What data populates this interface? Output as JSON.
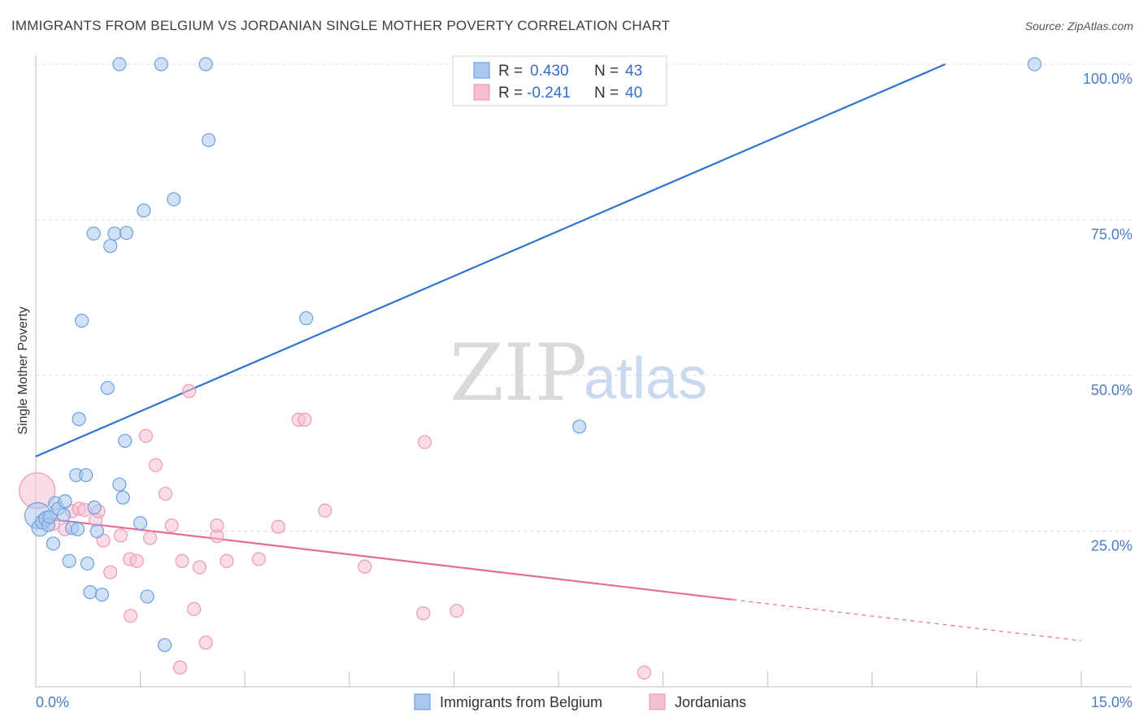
{
  "header": {
    "title": "IMMIGRANTS FROM BELGIUM VS JORDANIAN SINGLE MOTHER POVERTY CORRELATION CHART",
    "source": "Source: ZipAtlas.com"
  },
  "watermark": {
    "zip": "ZIP",
    "atlas": "atlas"
  },
  "colors": {
    "blue_fill": "#aac8ef",
    "blue_stroke": "#6d9fe0",
    "blue_line": "#2f74d0",
    "pink_fill": "#f6bfd0",
    "pink_stroke": "#ec9ab4",
    "pink_line": "#e36c98",
    "grid": "#dcdcdc",
    "tick_text": "#4a7bc8"
  },
  "legend_box": {
    "rows": [
      {
        "r_label": "R =",
        "r_value": "0.430",
        "n_label": "N =",
        "n_value": "43"
      },
      {
        "r_label": "R =",
        "r_value": "-0.241",
        "n_label": "N =",
        "n_value": "40"
      }
    ]
  },
  "bottom_legend": [
    "Immigrants from Belgium",
    "Jordanians"
  ],
  "chart_data": {
    "type": "scatter",
    "title": "IMMIGRANTS FROM BELGIUM VS JORDANIAN SINGLE MOTHER POVERTY CORRELATION CHART",
    "xlabel": "",
    "ylabel": "Single Mother Poverty",
    "xlim": [
      0,
      15
    ],
    "ylim": [
      0,
      100
    ],
    "x_tick_labels": [
      "0.0%",
      "15.0%"
    ],
    "y_ticks": [
      25,
      50,
      75,
      100
    ],
    "y_tick_labels": [
      "25.0%",
      "50.0%",
      "75.0%",
      "100.0%"
    ],
    "grid": true,
    "legend_position": "top-center",
    "series": [
      {
        "name": "Immigrants from Belgium",
        "color": "#6d9fe0",
        "points": [
          [
            0.03,
            27.5,
            16
          ],
          [
            0.06,
            25.5,
            10
          ],
          [
            0.1,
            26.5,
            9
          ],
          [
            0.15,
            27.0,
            9
          ],
          [
            0.18,
            26.0,
            8
          ],
          [
            0.2,
            27.3,
            8
          ],
          [
            0.25,
            23.0,
            8
          ],
          [
            0.28,
            29.5,
            8
          ],
          [
            0.32,
            28.6,
            8
          ],
          [
            0.4,
            27.6,
            8
          ],
          [
            0.42,
            29.8,
            8
          ],
          [
            0.48,
            20.2,
            8
          ],
          [
            0.52,
            25.5,
            8
          ],
          [
            0.6,
            25.3,
            8
          ],
          [
            0.58,
            34.0,
            8
          ],
          [
            0.62,
            43.0,
            8
          ],
          [
            0.66,
            58.8,
            8
          ],
          [
            0.72,
            34.0,
            8
          ],
          [
            0.74,
            19.8,
            8
          ],
          [
            0.78,
            15.2,
            8
          ],
          [
            0.84,
            28.8,
            8
          ],
          [
            0.88,
            25.0,
            8
          ],
          [
            0.95,
            14.8,
            8
          ],
          [
            1.03,
            48.0,
            8
          ],
          [
            0.83,
            72.8,
            8
          ],
          [
            1.07,
            70.8,
            8
          ],
          [
            1.13,
            72.8,
            8
          ],
          [
            1.3,
            72.9,
            8
          ],
          [
            1.2,
            100.0,
            8
          ],
          [
            1.2,
            32.5,
            8
          ],
          [
            1.25,
            30.4,
            8
          ],
          [
            1.28,
            39.5,
            8
          ],
          [
            1.5,
            26.3,
            8
          ],
          [
            1.55,
            76.5,
            8
          ],
          [
            1.6,
            14.5,
            8
          ],
          [
            1.8,
            100.0,
            8
          ],
          [
            1.85,
            6.7,
            8
          ],
          [
            1.98,
            78.3,
            8
          ],
          [
            2.44,
            100.0,
            8
          ],
          [
            2.48,
            87.8,
            8
          ],
          [
            3.88,
            59.2,
            8
          ],
          [
            7.8,
            41.8,
            8
          ],
          [
            14.33,
            100.0,
            8
          ]
        ],
        "trend": {
          "x0": 0.0,
          "y0": 37.0,
          "x1": 13.05,
          "y1": 100.0,
          "dashed_to": null
        }
      },
      {
        "name": "Jordanians",
        "color": "#ec9ab4",
        "points": [
          [
            0.02,
            31.5,
            22
          ],
          [
            0.25,
            26.2,
            8
          ],
          [
            0.42,
            25.3,
            8
          ],
          [
            0.52,
            28.2,
            8
          ],
          [
            0.62,
            28.6,
            8
          ],
          [
            0.7,
            28.4,
            8
          ],
          [
            0.86,
            26.8,
            8
          ],
          [
            0.9,
            28.2,
            8
          ],
          [
            0.97,
            23.5,
            8
          ],
          [
            1.07,
            18.4,
            8
          ],
          [
            1.22,
            24.3,
            8
          ],
          [
            1.35,
            20.5,
            8
          ],
          [
            1.36,
            11.4,
            8
          ],
          [
            1.45,
            20.2,
            8
          ],
          [
            1.58,
            40.3,
            8
          ],
          [
            1.64,
            23.9,
            8
          ],
          [
            1.72,
            35.6,
            8
          ],
          [
            1.86,
            31.0,
            8
          ],
          [
            1.95,
            25.9,
            8
          ],
          [
            2.07,
            3.1,
            8
          ],
          [
            2.1,
            20.2,
            8
          ],
          [
            2.2,
            47.5,
            8
          ],
          [
            2.27,
            12.5,
            8
          ],
          [
            2.35,
            19.2,
            8
          ],
          [
            2.44,
            7.1,
            8
          ],
          [
            2.6,
            24.2,
            8
          ],
          [
            2.6,
            25.9,
            8
          ],
          [
            2.74,
            20.2,
            8
          ],
          [
            3.2,
            20.5,
            8
          ],
          [
            3.48,
            25.7,
            8
          ],
          [
            3.77,
            42.9,
            8
          ],
          [
            3.86,
            42.9,
            8
          ],
          [
            4.15,
            28.3,
            8
          ],
          [
            4.72,
            19.3,
            8
          ],
          [
            5.56,
            11.8,
            8
          ],
          [
            5.58,
            39.3,
            8
          ],
          [
            6.04,
            12.2,
            8
          ],
          [
            8.73,
            2.3,
            8
          ],
          [
            8.75,
            5.0,
            0
          ],
          [
            0.55,
            27.0,
            0
          ]
        ],
        "trend": {
          "x0": 0.0,
          "y0": 27.2,
          "x1": 10.0,
          "y1": 14.0,
          "dashed_to": {
            "x": 15.0,
            "y": 7.4
          }
        }
      }
    ]
  }
}
